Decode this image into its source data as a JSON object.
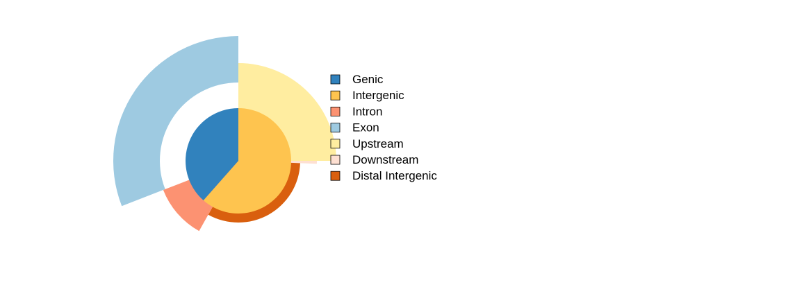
{
  "chart_data": {
    "type": "pie",
    "title": "",
    "legend_position": "right",
    "legend": [
      {
        "label": "Genic",
        "color": "#3182BD"
      },
      {
        "label": "Intergenic",
        "color": "#FEC44F"
      },
      {
        "label": "Intron",
        "color": "#FC9272"
      },
      {
        "label": "Exon",
        "color": "#9ECAE1"
      },
      {
        "label": "Upstream",
        "color": "#FFEDA0"
      },
      {
        "label": "Downstream",
        "color": "#FEE0D2"
      },
      {
        "label": "Distal Intergenic",
        "color": "#D95F0E"
      }
    ],
    "rings": [
      {
        "level": 1,
        "segments": [
          {
            "label": "Genic",
            "value": 38.5,
            "color": "#3182BD"
          },
          {
            "label": "Intergenic",
            "value": 61.5,
            "color": "#FEC44F"
          }
        ]
      },
      {
        "level": 2,
        "segments": [
          {
            "label": "Upstream",
            "value": 25.0,
            "color": "#FFEDA0"
          },
          {
            "label": "Downstream",
            "value": 0.6,
            "color": "#FEE0D2"
          },
          {
            "label": "Distal Intergenic",
            "value": 32.5,
            "color": "#D95F0E"
          },
          {
            "label": "Intron",
            "value": 11.0,
            "color": "#FC9272"
          },
          {
            "label": "Exon",
            "value": 30.9,
            "color": "#9ECAE1"
          }
        ]
      }
    ]
  }
}
